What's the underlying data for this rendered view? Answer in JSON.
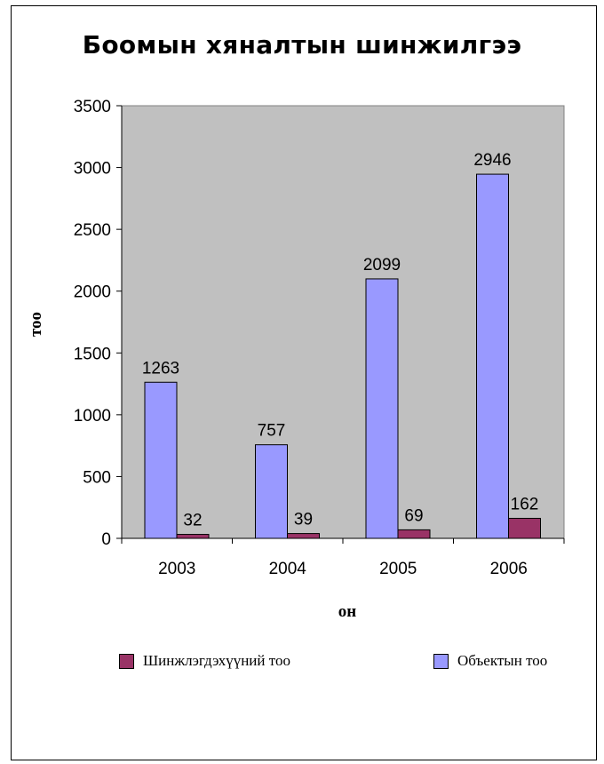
{
  "chart_data": {
    "type": "bar",
    "title": "Боомын хяналтын шинжилгээ",
    "xlabel": "он",
    "ylabel": "тоо",
    "categories": [
      "2003",
      "2004",
      "2005",
      "2006"
    ],
    "ylim": [
      0,
      3500
    ],
    "yticks": [
      "0",
      "500",
      "1000",
      "1500",
      "2000",
      "2500",
      "3000",
      "3500"
    ],
    "grid": false,
    "plot_background": "#c0c0c0",
    "legend_position": "bottom",
    "series": [
      {
        "name": "Объектын тоо",
        "values": [
          1263,
          757,
          2099,
          2946
        ],
        "color": "#9999ff"
      },
      {
        "name": "Шинжлэгдэхүүний тоо",
        "values": [
          32,
          39,
          69,
          162
        ],
        "color": "#993366"
      }
    ]
  },
  "legend": {
    "left_label": "Шинжлэгдэхүүний тоо",
    "right_label": "Объектын тоо"
  }
}
